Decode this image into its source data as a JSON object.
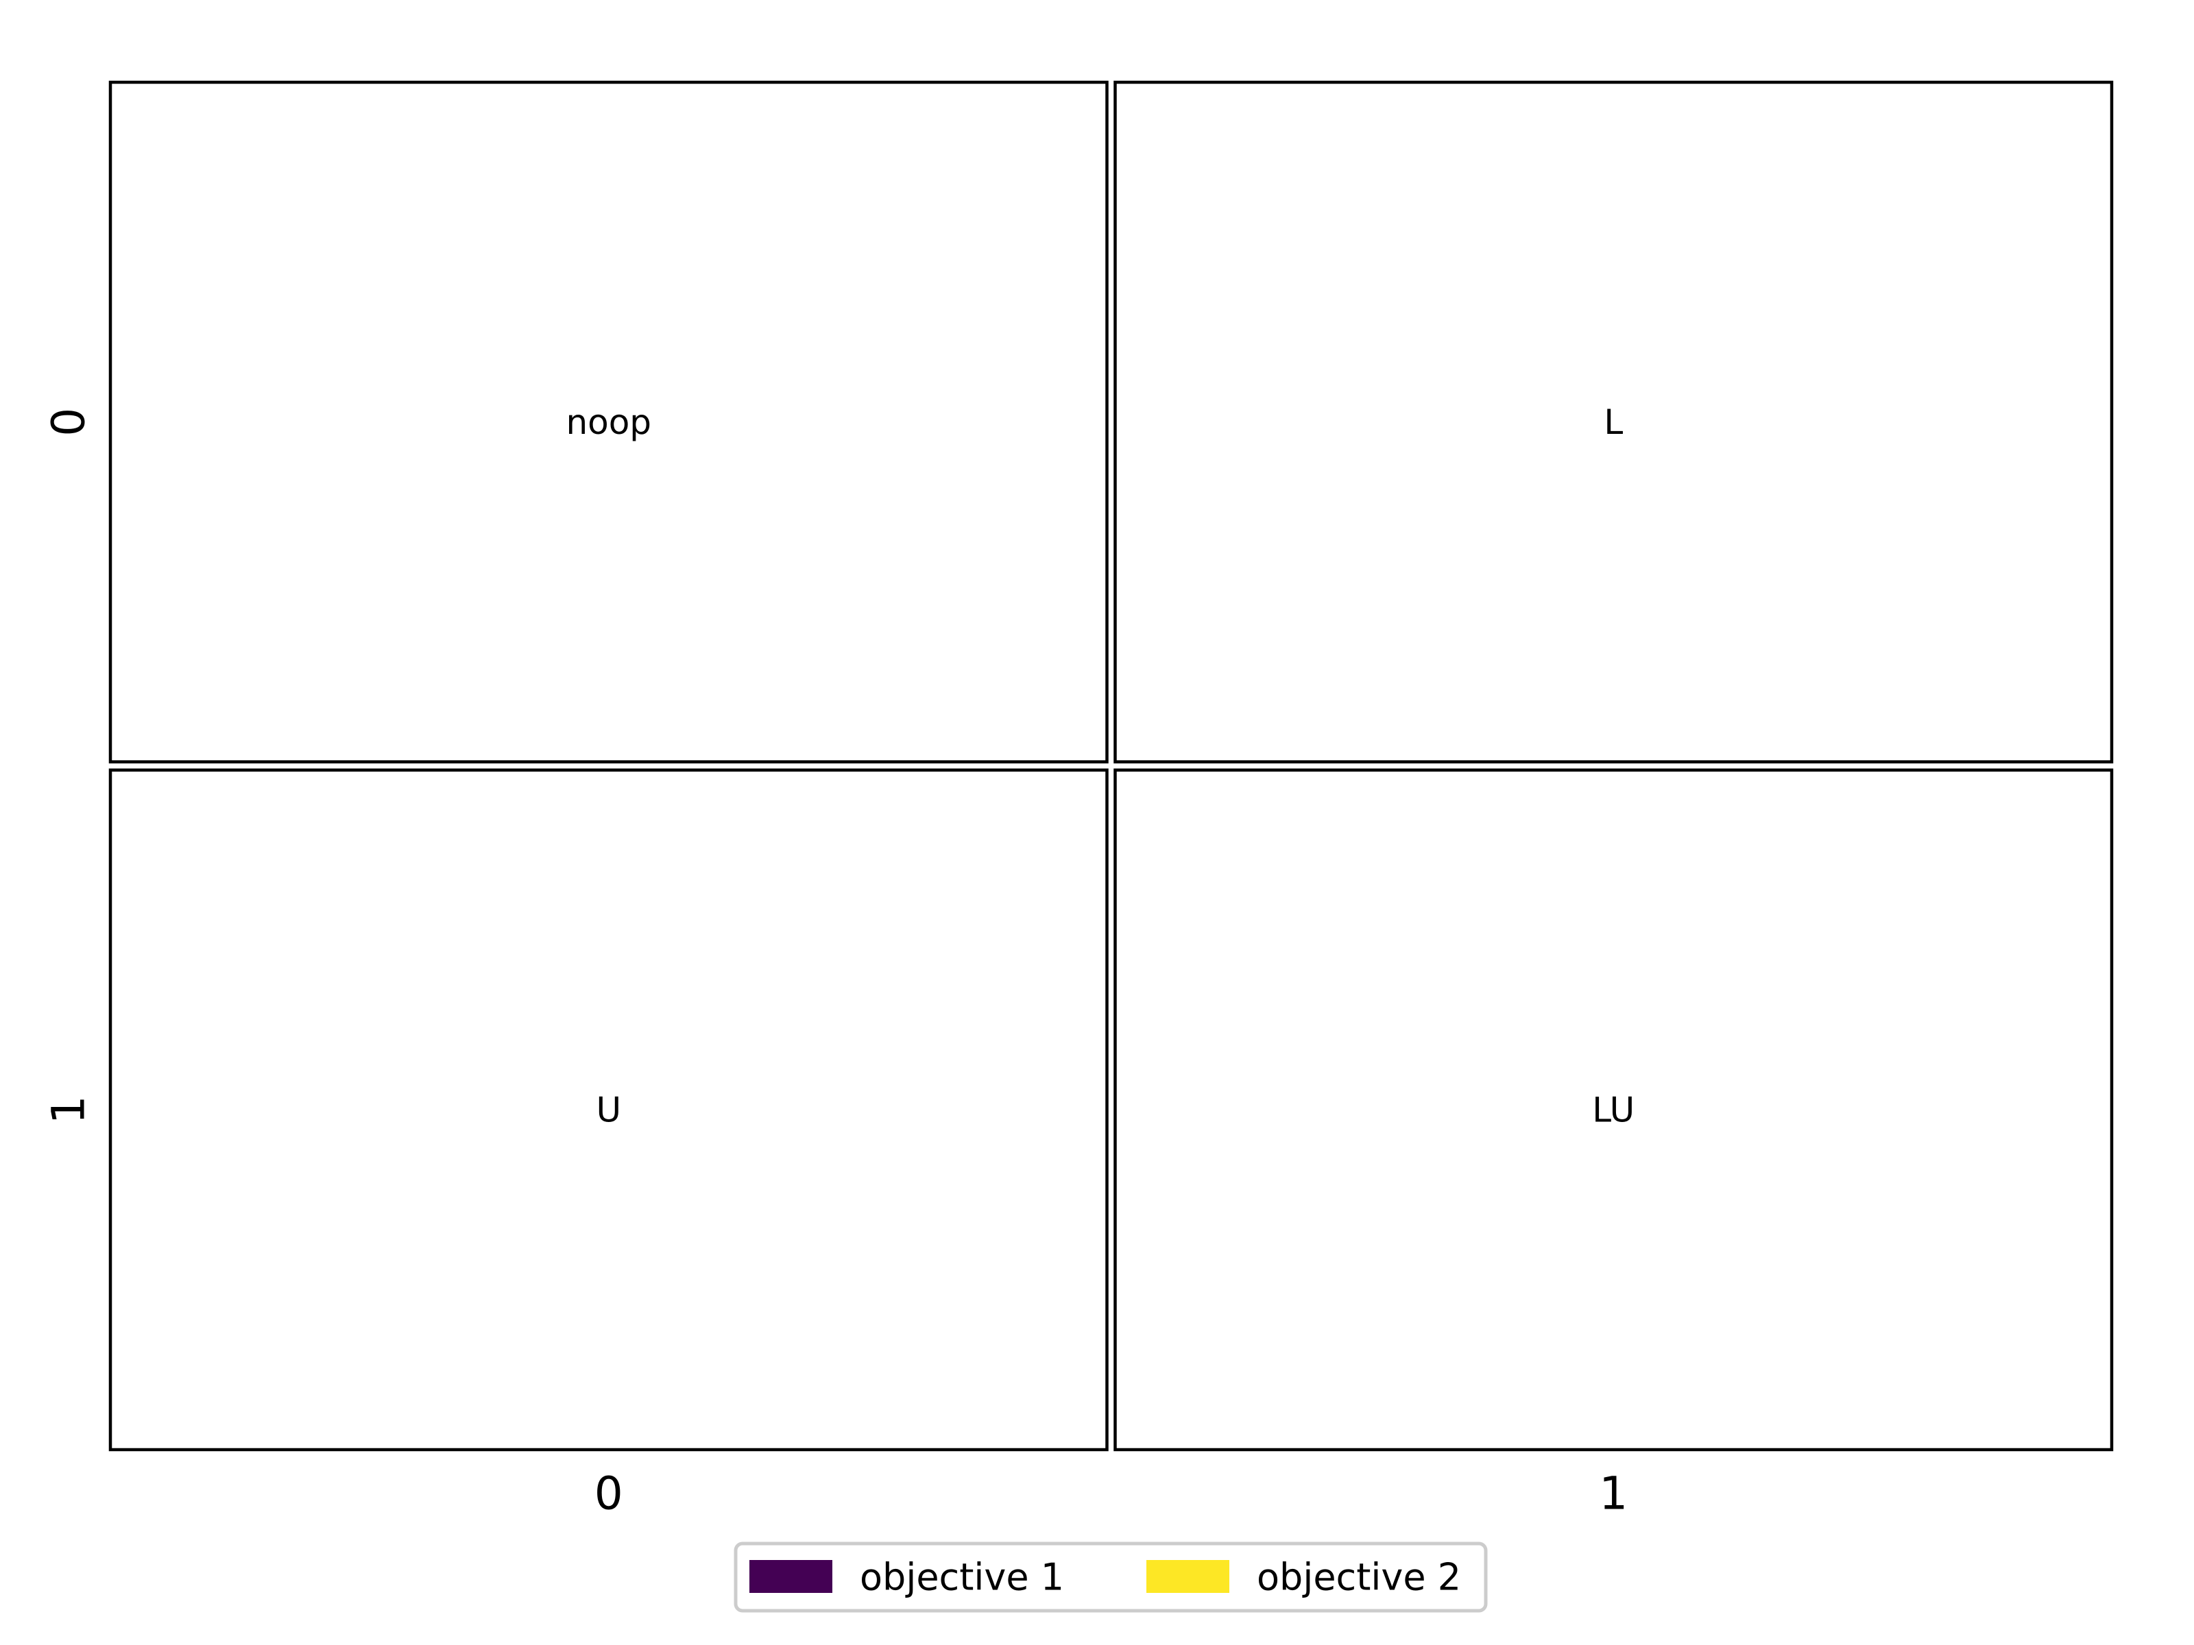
{
  "chart_data": {
    "type": "heatmap",
    "rows": [
      "0",
      "1"
    ],
    "cols": [
      "0",
      "1"
    ],
    "cells": [
      {
        "row": 0,
        "col": 0,
        "label": "noop",
        "value": null
      },
      {
        "row": 0,
        "col": 1,
        "label": "L",
        "value": null
      },
      {
        "row": 1,
        "col": 0,
        "label": "U",
        "value": null
      },
      {
        "row": 1,
        "col": 1,
        "label": "LU",
        "value": null
      }
    ],
    "legend": [
      {
        "name": "objective 1",
        "color": "#440154"
      },
      {
        "name": "objective 2",
        "color": "#fde725"
      }
    ],
    "legend_position": "bottom-center",
    "grid": false
  }
}
